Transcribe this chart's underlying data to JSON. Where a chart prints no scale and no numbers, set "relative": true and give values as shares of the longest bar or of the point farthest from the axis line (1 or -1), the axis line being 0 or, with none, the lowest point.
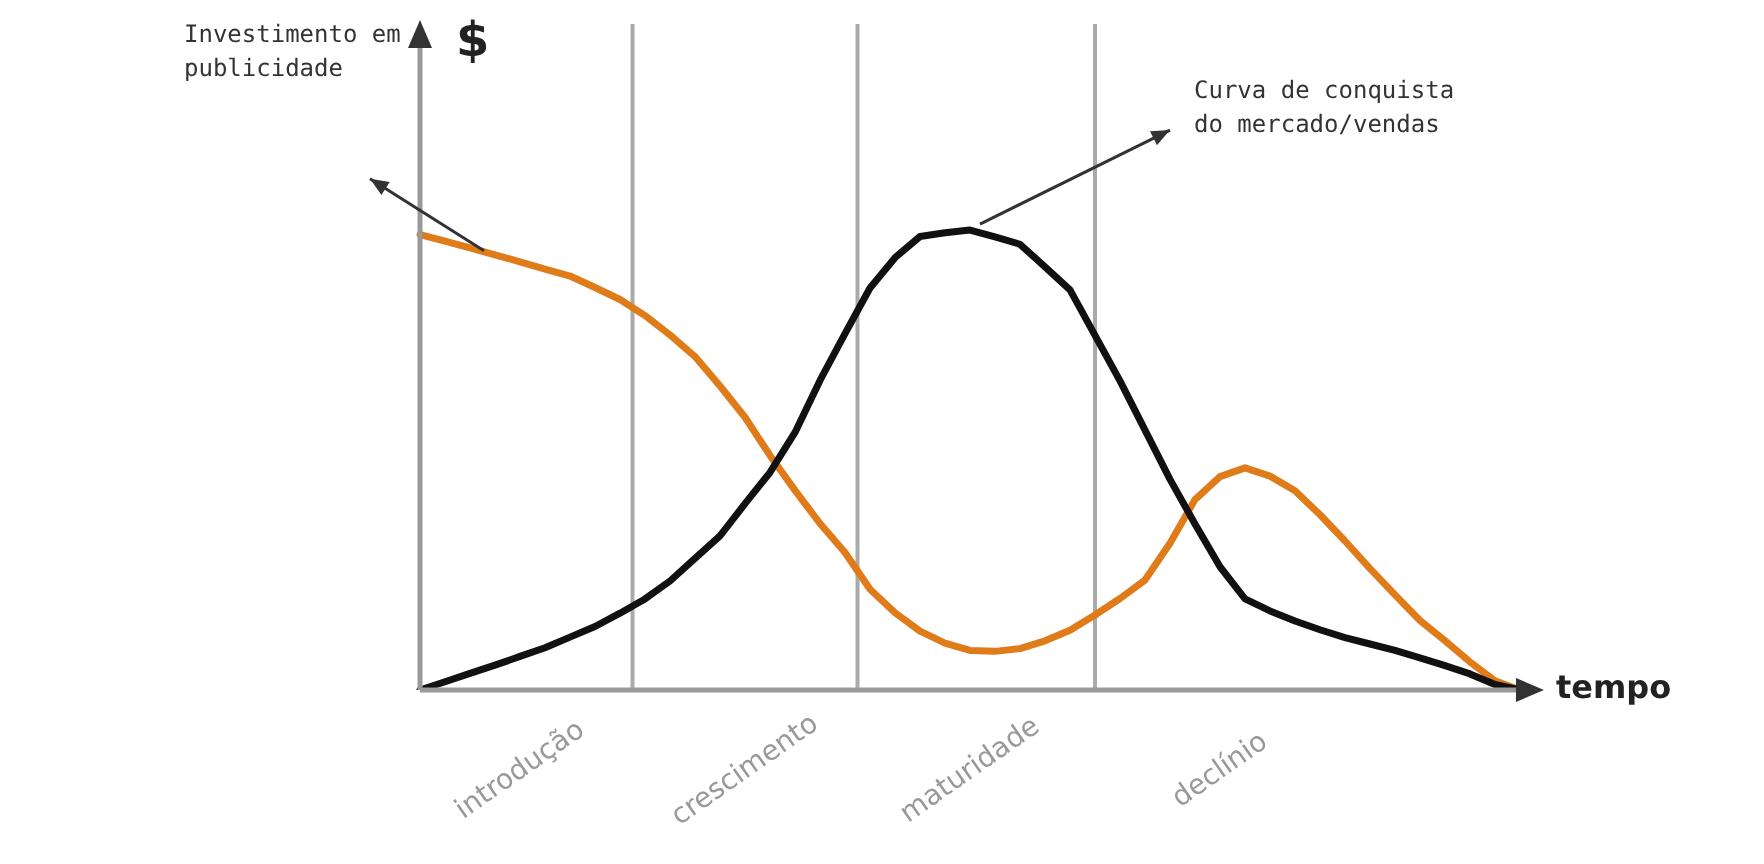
{
  "chart_data": {
    "type": "line",
    "relative": true,
    "ylabel": "$",
    "xlabel": "tempo",
    "tick_labels": "x",
    "marker": "none",
    "categories": [
      null,
      null,
      null,
      null,
      "introdução",
      null,
      null,
      null,
      null,
      null,
      null,
      null,
      null,
      "crescimento",
      null,
      null,
      null,
      null,
      null,
      null,
      null,
      null,
      "maturidade",
      null,
      null,
      null,
      null,
      null,
      null,
      null,
      null,
      null,
      "declínio",
      null,
      null,
      null,
      null,
      null,
      null,
      null,
      null,
      null,
      null,
      null,
      null
    ],
    "series": [
      {
        "color": "#e07b1a",
        "values": [
          0.99,
          0.976,
          0.961,
          0.946,
          0.931,
          0.915,
          0.9,
          0.875,
          0.849,
          0.814,
          0.772,
          0.725,
          0.661,
          0.593,
          0.51,
          0.434,
          0.362,
          0.299,
          0.219,
          0.168,
          0.128,
          0.102,
          0.086,
          0.084,
          0.09,
          0.107,
          0.13,
          0.163,
          0.199,
          0.239,
          0.319,
          0.414,
          0.464,
          0.483,
          0.465,
          0.433,
          0.381,
          0.324,
          0.264,
          0.207,
          0.151,
          0.107,
          0.061,
          0.02,
          0
        ]
      },
      {
        "color": "#111111",
        "values": [
          0,
          0.018,
          0.036,
          0.054,
          0.073,
          0.092,
          0.115,
          0.138,
          0.167,
          0.198,
          0.237,
          0.286,
          0.335,
          0.405,
          0.473,
          0.56,
          0.673,
          0.775,
          0.874,
          0.94,
          0.986,
          0.994,
          1,
          0.985,
          0.969,
          0.92,
          0.87,
          0.771,
          0.672,
          0.565,
          0.458,
          0.361,
          0.268,
          0.198,
          0.172,
          0.15,
          0.131,
          0.114,
          0.1,
          0.086,
          0.07,
          0.053,
          0.035,
          0.012,
          0
        ]
      }
    ],
    "annotations": [
      "Investimento em publicidade",
      "Curva de conquista do mercado/vendas"
    ]
  }
}
